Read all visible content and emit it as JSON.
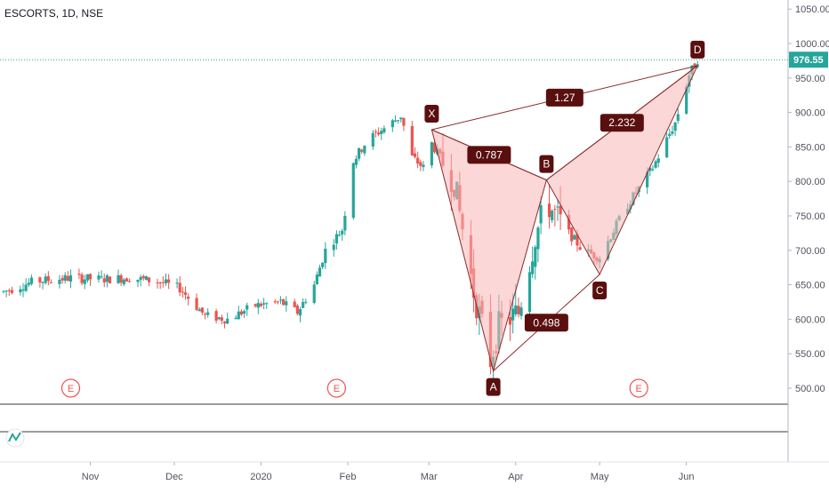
{
  "header": {
    "symbol_label": "ESCORTS, 1D, NSE"
  },
  "price_badge": {
    "value": "976.55"
  },
  "colors": {
    "up": "#26a69a",
    "down": "#ef5350",
    "pattern_fill": "#f7b6b6",
    "pattern_line": "#8b2b2b",
    "label_bg": "#5a0f0f",
    "last_price": "#26a69a",
    "event_marker": "#ef5350"
  },
  "event_markers": [
    {
      "label": "E",
      "date": "2019-10-25"
    },
    {
      "label": "E",
      "date": "2020-01-28"
    },
    {
      "label": "E",
      "date": "2020-05-15"
    }
  ],
  "chart_data": {
    "type": "candlestick",
    "yaxis": {
      "ticks": [
        500,
        550,
        600,
        650,
        700,
        750,
        800,
        850,
        900,
        950,
        1000,
        1050
      ],
      "tick_labels": [
        "500.00",
        "550.00",
        "600.00",
        "650.00",
        "700.00",
        "750.00",
        "800.00",
        "850.00",
        "900.00",
        "950.00",
        "1000.00",
        "1050.00"
      ]
    },
    "xaxis": {
      "ticks": [
        {
          "label": "Nov",
          "date": "2019-11-01"
        },
        {
          "label": "Dec",
          "date": "2019-12-01"
        },
        {
          "label": "2020",
          "date": "2020-01-01"
        },
        {
          "label": "Feb",
          "date": "2020-02-01"
        },
        {
          "label": "Mar",
          "date": "2020-03-01"
        },
        {
          "label": "Apr",
          "date": "2020-04-01"
        },
        {
          "label": "May",
          "date": "2020-05-01"
        },
        {
          "label": "Jun",
          "date": "2020-06-01"
        }
      ]
    },
    "last_price": 976.55,
    "pattern": {
      "points": [
        {
          "label": "X",
          "date": "2020-03-02",
          "price": 875
        },
        {
          "label": "A",
          "date": "2020-03-24",
          "price": 525
        },
        {
          "label": "B",
          "date": "2020-04-12",
          "price": 802
        },
        {
          "label": "C",
          "date": "2020-05-01",
          "price": 665
        },
        {
          "label": "D",
          "date": "2020-06-05",
          "price": 968
        }
      ],
      "ratios": [
        {
          "label": "0.787",
          "from": "X",
          "to": "B"
        },
        {
          "label": "0.498",
          "from": "A",
          "to": "C"
        },
        {
          "label": "2.232",
          "from": "B",
          "to": "D"
        },
        {
          "label": "1.27",
          "from": "X",
          "to": "D"
        }
      ]
    },
    "series_anchors": [
      [
        "2019-10-01",
        640
      ],
      [
        "2019-10-12",
        655
      ],
      [
        "2019-10-25",
        660
      ],
      [
        "2019-11-05",
        658
      ],
      [
        "2019-11-15",
        660
      ],
      [
        "2019-11-25",
        655
      ],
      [
        "2019-12-03",
        645
      ],
      [
        "2019-12-12",
        605
      ],
      [
        "2019-12-20",
        600
      ],
      [
        "2019-12-30",
        620
      ],
      [
        "2020-01-08",
        625
      ],
      [
        "2020-01-14",
        610
      ],
      [
        "2020-01-20",
        650
      ],
      [
        "2020-01-24",
        700
      ],
      [
        "2020-01-30",
        730
      ],
      [
        "2020-02-03",
        830
      ],
      [
        "2020-02-08",
        860
      ],
      [
        "2020-02-15",
        880
      ],
      [
        "2020-02-20",
        895
      ],
      [
        "2020-02-24",
        835
      ],
      [
        "2020-02-28",
        820
      ],
      [
        "2020-03-02",
        855
      ],
      [
        "2020-03-10",
        800
      ],
      [
        "2020-03-17",
        640
      ],
      [
        "2020-03-23",
        540
      ],
      [
        "2020-03-26",
        590
      ],
      [
        "2020-04-02",
        610
      ],
      [
        "2020-04-08",
        720
      ],
      [
        "2020-04-12",
        770
      ],
      [
        "2020-04-18",
        735
      ],
      [
        "2020-04-25",
        700
      ],
      [
        "2020-05-01",
        690
      ],
      [
        "2020-05-10",
        760
      ],
      [
        "2020-05-20",
        820
      ],
      [
        "2020-05-28",
        885
      ],
      [
        "2020-06-02",
        955
      ],
      [
        "2020-06-05",
        976.55
      ]
    ]
  }
}
